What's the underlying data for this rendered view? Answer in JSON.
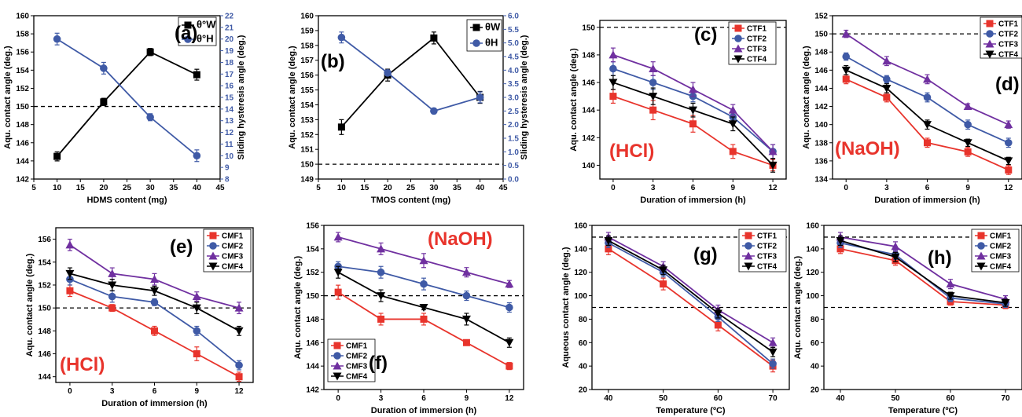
{
  "chart_data": [
    {
      "type": "line",
      "panel_label": "(a)",
      "xlabel": "HDMS content (mg)",
      "ylabel": "Aqu. contact angle (deg.)",
      "ylabel2": "Sliding hysteresis angle (deg.)",
      "xlim": [
        5,
        45
      ],
      "ylim": [
        142,
        160
      ],
      "ylim2": [
        8,
        22
      ],
      "xticks": [
        5,
        10,
        15,
        20,
        25,
        30,
        35,
        40,
        45
      ],
      "yticks": [
        142,
        144,
        146,
        148,
        150,
        152,
        154,
        156,
        158,
        160
      ],
      "yticks2": [
        8,
        9,
        10,
        11,
        12,
        13,
        14,
        15,
        16,
        17,
        18,
        19,
        20,
        21,
        22
      ],
      "hline": 150,
      "legend_position": "top-right",
      "series": [
        {
          "name": "θ°W",
          "color": "#000000",
          "marker": "square",
          "axis": "left",
          "x": [
            10,
            20,
            30,
            40
          ],
          "y": [
            144.5,
            150.5,
            156,
            153.5
          ],
          "err": [
            0.5,
            0.4,
            0.4,
            0.6
          ]
        },
        {
          "name": "θ°H",
          "color": "#3f5aa6",
          "marker": "circle",
          "axis": "right",
          "x": [
            10,
            20,
            30,
            40
          ],
          "y": [
            20,
            17.5,
            13.3,
            10
          ],
          "err": [
            0.5,
            0.5,
            0.3,
            0.5
          ]
        }
      ]
    },
    {
      "type": "line",
      "panel_label": "(b)",
      "xlabel": "TMOS content (mg)",
      "ylabel": "Aqu. contact angle (deg.)",
      "ylabel2": "Sliding hysteresis angle (deg.)",
      "xlim": [
        5,
        45
      ],
      "ylim": [
        149,
        160
      ],
      "ylim2": [
        0,
        6
      ],
      "xticks": [
        5,
        10,
        15,
        20,
        25,
        30,
        35,
        40,
        45
      ],
      "yticks": [
        149,
        150,
        151,
        152,
        153,
        154,
        155,
        156,
        157,
        158,
        159,
        160
      ],
      "yticks2": [
        0.0,
        0.5,
        1.0,
        1.5,
        2.0,
        2.5,
        3.0,
        3.5,
        4.0,
        4.5,
        5.0,
        5.5,
        6.0
      ],
      "yticks2_labels": [
        "0.0",
        "0.5",
        "1.0",
        "1.5",
        "2.0",
        "2.5",
        "3.0",
        "3.5",
        "4.0",
        "4.5",
        "5.0",
        "5.5",
        "6.0"
      ],
      "hline": 150,
      "legend_position": "top-right",
      "series": [
        {
          "name": "θW",
          "color": "#000000",
          "marker": "square",
          "axis": "left",
          "x": [
            10,
            20,
            30,
            40
          ],
          "y": [
            152.5,
            156,
            158.5,
            154.5
          ],
          "err": [
            0.5,
            0.4,
            0.4,
            0.4
          ]
        },
        {
          "name": "θH",
          "color": "#3f5aa6",
          "marker": "circle",
          "axis": "right",
          "x": [
            10,
            20,
            30,
            40
          ],
          "y": [
            5.2,
            3.9,
            2.5,
            3.0
          ],
          "err": [
            0.2,
            0.1,
            0.1,
            0.2
          ]
        }
      ]
    },
    {
      "type": "line",
      "panel_label": "(c)",
      "chem_label": "(HCl)",
      "xlabel": "Duration of immersion (h)",
      "ylabel": "Aqu. contact angle (deg.)",
      "xlim": [
        -1,
        13
      ],
      "ylim": [
        139,
        150.5
      ],
      "xticks": [
        0,
        3,
        6,
        9,
        12
      ],
      "yticks": [
        140,
        142,
        144,
        146,
        148,
        150
      ],
      "hline": 150,
      "legend_position": "top-right",
      "series": [
        {
          "name": "CTF1",
          "color": "#e8342c",
          "marker": "square",
          "x": [
            0,
            3,
            6,
            9,
            12
          ],
          "y": [
            145,
            144,
            143,
            141,
            140
          ],
          "err": [
            0.5,
            0.7,
            0.6,
            0.5,
            0.4
          ]
        },
        {
          "name": "CTF2",
          "color": "#3f5aa6",
          "marker": "circle",
          "x": [
            0,
            3,
            6,
            9,
            12
          ],
          "y": [
            147,
            146,
            145,
            143.5,
            141
          ],
          "err": [
            0.5,
            0.5,
            0.4,
            0.4,
            0.5
          ]
        },
        {
          "name": "CTF3",
          "color": "#7030a0",
          "marker": "triangle",
          "x": [
            0,
            3,
            6,
            9,
            12
          ],
          "y": [
            148,
            147,
            145.5,
            144,
            141
          ],
          "err": [
            0.5,
            0.5,
            0.5,
            0.4,
            0.5
          ]
        },
        {
          "name": "CTF4",
          "color": "#000000",
          "marker": "tri-down",
          "x": [
            0,
            3,
            6,
            9,
            12
          ],
          "y": [
            146,
            145,
            144,
            143,
            140
          ],
          "err": [
            0.5,
            0.6,
            0.5,
            0.5,
            0.5
          ]
        }
      ]
    },
    {
      "type": "line",
      "panel_label": "(d)",
      "chem_label": "(NaOH)",
      "xlabel": "Duration of immersion (h)",
      "ylabel": "Aqu. contact angle (deg.)",
      "xlim": [
        -1,
        13
      ],
      "ylim": [
        134,
        152
      ],
      "xticks": [
        0,
        3,
        6,
        9,
        12
      ],
      "yticks": [
        134,
        136,
        138,
        140,
        142,
        144,
        146,
        148,
        150,
        152
      ],
      "hline": 150,
      "legend_position": "top-right",
      "series": [
        {
          "name": "CTF1",
          "color": "#e8342c",
          "marker": "square",
          "x": [
            0,
            3,
            6,
            9,
            12
          ],
          "y": [
            145,
            143,
            138,
            137,
            135
          ],
          "err": [
            0.5,
            0.5,
            0.5,
            0.5,
            0.5
          ]
        },
        {
          "name": "CTF2",
          "color": "#3f5aa6",
          "marker": "circle",
          "x": [
            0,
            3,
            6,
            9,
            12
          ],
          "y": [
            147.5,
            145,
            143,
            140,
            138
          ],
          "err": [
            0.4,
            0.4,
            0.5,
            0.5,
            0.5
          ]
        },
        {
          "name": "CTF3",
          "color": "#7030a0",
          "marker": "triangle",
          "x": [
            0,
            3,
            6,
            9,
            12
          ],
          "y": [
            150,
            147,
            145,
            142,
            140
          ],
          "err": [
            0.4,
            0.5,
            0.5,
            0.3,
            0.4
          ]
        },
        {
          "name": "CTF4",
          "color": "#000000",
          "marker": "tri-down",
          "x": [
            0,
            3,
            6,
            9,
            12
          ],
          "y": [
            146,
            144,
            140,
            138,
            136
          ],
          "err": [
            0.5,
            0.5,
            0.5,
            0.4,
            0.4
          ]
        }
      ]
    },
    {
      "type": "line",
      "panel_label": "(e)",
      "chem_label": "(HCl)",
      "xlabel": "Duration of immersion (h)",
      "ylabel": "Aqu. contact angle (deg.)",
      "xlim": [
        -1,
        13
      ],
      "ylim": [
        143.5,
        157
      ],
      "xticks": [
        0,
        3,
        6,
        9,
        12
      ],
      "yticks": [
        144,
        146,
        148,
        150,
        152,
        154,
        156
      ],
      "hline": 150,
      "legend_position": "top-right",
      "series": [
        {
          "name": "CMF1",
          "color": "#e8342c",
          "marker": "square",
          "x": [
            0,
            3,
            6,
            9,
            12
          ],
          "y": [
            151.5,
            150,
            148,
            146,
            144
          ],
          "err": [
            0.5,
            0.3,
            0.4,
            0.6,
            0.4
          ]
        },
        {
          "name": "CMF2",
          "color": "#3f5aa6",
          "marker": "circle",
          "x": [
            0,
            3,
            6,
            9,
            12
          ],
          "y": [
            152.5,
            151,
            150.5,
            148,
            145
          ],
          "err": [
            0.5,
            0.5,
            0.3,
            0.4,
            0.4
          ]
        },
        {
          "name": "CMF3",
          "color": "#7030a0",
          "marker": "triangle",
          "x": [
            0,
            3,
            6,
            9,
            12
          ],
          "y": [
            155.5,
            153,
            152.5,
            151,
            150
          ],
          "err": [
            0.5,
            0.5,
            0.5,
            0.4,
            0.5
          ]
        },
        {
          "name": "CMF4",
          "color": "#000000",
          "marker": "tri-down",
          "x": [
            0,
            3,
            6,
            9,
            12
          ],
          "y": [
            153,
            152,
            151.5,
            150,
            148
          ],
          "err": [
            0.5,
            0.5,
            0.4,
            0.5,
            0.4
          ]
        }
      ]
    },
    {
      "type": "line",
      "panel_label": "(f)",
      "chem_label": "(NaOH)",
      "xlabel": "Duration of immersion (h)",
      "ylabel": "Aqu. contact angle (deg.)",
      "xlim": [
        -1,
        13
      ],
      "ylim": [
        142,
        156
      ],
      "xticks": [
        0,
        3,
        6,
        9,
        12
      ],
      "yticks": [
        142,
        144,
        146,
        148,
        150,
        152,
        154,
        156
      ],
      "hline": 150,
      "legend_position": "bottom-left",
      "series": [
        {
          "name": "CMF1",
          "color": "#e8342c",
          "marker": "square",
          "x": [
            0,
            3,
            6,
            9,
            12
          ],
          "y": [
            150.3,
            148,
            148,
            146,
            144
          ],
          "err": [
            0.6,
            0.5,
            0.5,
            0.1,
            0.3
          ]
        },
        {
          "name": "CMF2",
          "color": "#3f5aa6",
          "marker": "circle",
          "x": [
            0,
            3,
            6,
            9,
            12
          ],
          "y": [
            152.5,
            152,
            151,
            150,
            149
          ],
          "err": [
            0.4,
            0.5,
            0.5,
            0.4,
            0.4
          ]
        },
        {
          "name": "CMF3",
          "color": "#7030a0",
          "marker": "triangle",
          "x": [
            0,
            3,
            6,
            9,
            12
          ],
          "y": [
            155,
            154,
            153,
            152,
            151
          ],
          "err": [
            0.4,
            0.5,
            0.6,
            0.4,
            0.3
          ]
        },
        {
          "name": "CMF4",
          "color": "#000000",
          "marker": "tri-down",
          "x": [
            0,
            3,
            6,
            9,
            12
          ],
          "y": [
            152,
            150,
            149,
            148,
            146
          ],
          "err": [
            0.5,
            0.5,
            0.2,
            0.5,
            0.4
          ]
        }
      ]
    },
    {
      "type": "line",
      "panel_label": "(g)",
      "xlabel": "Temperature (ºC)",
      "ylabel": "Aqueous contact angle (deg.)",
      "xlim": [
        37,
        73
      ],
      "ylim": [
        20,
        160
      ],
      "xticks": [
        40,
        50,
        60,
        70
      ],
      "yticks": [
        20,
        40,
        60,
        80,
        100,
        120,
        140,
        160
      ],
      "hlines": [
        150,
        90
      ],
      "legend_position": "top-right",
      "series": [
        {
          "name": "CTF1",
          "color": "#e8342c",
          "marker": "square",
          "x": [
            40,
            50,
            60,
            70
          ],
          "y": [
            140,
            110,
            75,
            40
          ],
          "err": [
            5,
            5,
            5,
            5
          ]
        },
        {
          "name": "CTF2",
          "color": "#3f5aa6",
          "marker": "circle",
          "x": [
            40,
            50,
            60,
            70
          ],
          "y": [
            145,
            120,
            82,
            42
          ],
          "err": [
            4,
            4,
            4,
            4
          ]
        },
        {
          "name": "CTF3",
          "color": "#7030a0",
          "marker": "triangle",
          "x": [
            40,
            50,
            60,
            70
          ],
          "y": [
            150,
            125,
            88,
            60
          ],
          "err": [
            4,
            4,
            4,
            4
          ]
        },
        {
          "name": "CTF4",
          "color": "#000000",
          "marker": "tri-down",
          "x": [
            40,
            50,
            60,
            70
          ],
          "y": [
            147,
            122,
            85,
            52
          ],
          "err": [
            4,
            4,
            4,
            4
          ]
        }
      ]
    },
    {
      "type": "line",
      "panel_label": "(h)",
      "xlabel": "Temperature (ºC)",
      "ylabel": "Aqu. contact angle (deg.)",
      "xlim": [
        37,
        73
      ],
      "ylim": [
        20,
        160
      ],
      "xticks": [
        40,
        50,
        60,
        70
      ],
      "yticks": [
        20,
        40,
        60,
        80,
        100,
        120,
        140,
        160
      ],
      "hlines": [
        150,
        90
      ],
      "legend_position": "top-right",
      "series": [
        {
          "name": "CMF1",
          "color": "#e8342c",
          "marker": "square",
          "x": [
            40,
            50,
            60,
            70
          ],
          "y": [
            140,
            130,
            95,
            92
          ],
          "err": [
            4,
            4,
            3,
            3
          ]
        },
        {
          "name": "CMF2",
          "color": "#3f5aa6",
          "marker": "circle",
          "x": [
            40,
            50,
            60,
            70
          ],
          "y": [
            145,
            135,
            98,
            93
          ],
          "err": [
            4,
            4,
            3,
            3
          ]
        },
        {
          "name": "CMF3",
          "color": "#7030a0",
          "marker": "triangle",
          "x": [
            40,
            50,
            60,
            70
          ],
          "y": [
            150,
            142,
            110,
            97
          ],
          "err": [
            4,
            4,
            4,
            3
          ]
        },
        {
          "name": "CMF4",
          "color": "#000000",
          "marker": "tri-down",
          "x": [
            40,
            50,
            60,
            70
          ],
          "y": [
            147,
            133,
            100,
            94
          ],
          "err": [
            4,
            4,
            3,
            3
          ]
        }
      ]
    }
  ]
}
